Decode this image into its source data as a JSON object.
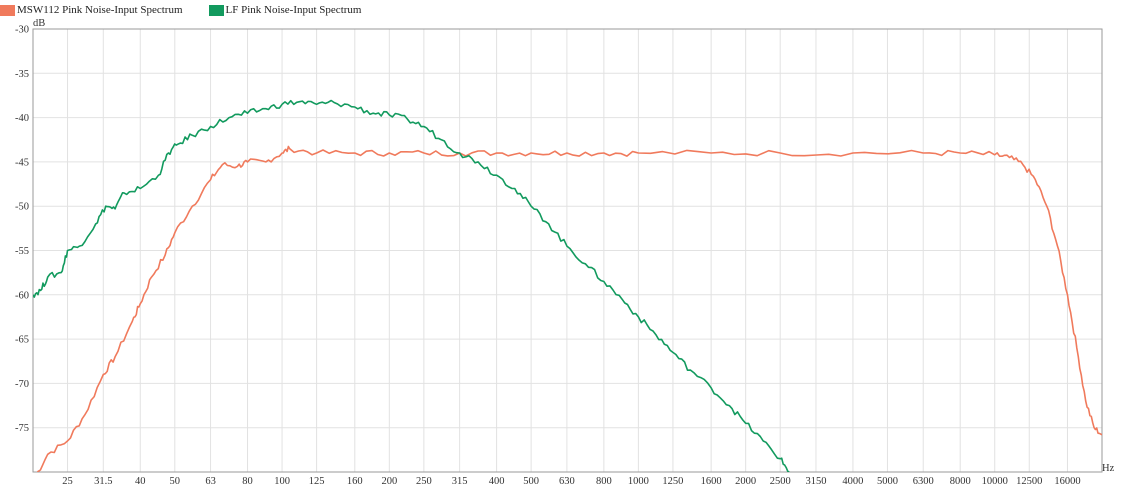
{
  "chart_data": {
    "type": "line",
    "xlabel": "Hz",
    "ylabel": "dB",
    "x_scale": "log",
    "ylim": [
      -80,
      -30
    ],
    "xlim": [
      20,
      20000
    ],
    "grid": true,
    "legend_position": "top-left",
    "x_ticks": [
      "25",
      "31.5",
      "40",
      "50",
      "63",
      "80",
      "100",
      "125",
      "160",
      "200",
      "250",
      "315",
      "400",
      "500",
      "630",
      "800",
      "1000",
      "1250",
      "1600",
      "2000",
      "2500",
      "3150",
      "4000",
      "5000",
      "6300",
      "8000",
      "10000",
      "12500",
      "16000"
    ],
    "y_ticks": [
      "-30",
      "-35",
      "-40",
      "-45",
      "-50",
      "-55",
      "-60",
      "-65",
      "-70",
      "-75"
    ],
    "series": [
      {
        "name": "MSW112 Pink Noise-Input Spectrum",
        "color": "#f07a5c",
        "points": [
          [
            20,
            -81
          ],
          [
            22,
            -78
          ],
          [
            25,
            -76.5
          ],
          [
            28,
            -73.5
          ],
          [
            31.5,
            -69
          ],
          [
            34,
            -67
          ],
          [
            38,
            -63
          ],
          [
            40,
            -61
          ],
          [
            43,
            -58
          ],
          [
            47,
            -55.5
          ],
          [
            50,
            -53
          ],
          [
            56,
            -50
          ],
          [
            63,
            -47
          ],
          [
            68,
            -45.3
          ],
          [
            75,
            -45.5
          ],
          [
            80,
            -45
          ],
          [
            90,
            -45
          ],
          [
            100,
            -44
          ],
          [
            105,
            -43.5
          ],
          [
            125,
            -44
          ],
          [
            160,
            -44
          ],
          [
            200,
            -44
          ],
          [
            250,
            -44
          ],
          [
            315,
            -44
          ],
          [
            400,
            -44
          ],
          [
            500,
            -44
          ],
          [
            630,
            -44
          ],
          [
            800,
            -44
          ],
          [
            1000,
            -44
          ],
          [
            1600,
            -44
          ],
          [
            2500,
            -44
          ],
          [
            4000,
            -44
          ],
          [
            6300,
            -44
          ],
          [
            8000,
            -44
          ],
          [
            10000,
            -44.2
          ],
          [
            11000,
            -44.5
          ],
          [
            12000,
            -45.3
          ],
          [
            13000,
            -47
          ],
          [
            14000,
            -50
          ],
          [
            15000,
            -54.5
          ],
          [
            16000,
            -60
          ],
          [
            17000,
            -66
          ],
          [
            18000,
            -72
          ],
          [
            19000,
            -75
          ],
          [
            20000,
            -75.8
          ]
        ]
      },
      {
        "name": "LF Pink Noise-Input Spectrum",
        "color": "#129a5e",
        "points": [
          [
            20,
            -60
          ],
          [
            21,
            -59.5
          ],
          [
            22,
            -58
          ],
          [
            24,
            -57.5
          ],
          [
            25,
            -55
          ],
          [
            27,
            -54.5
          ],
          [
            30,
            -52
          ],
          [
            32,
            -50
          ],
          [
            34,
            -50.3
          ],
          [
            36,
            -48.5
          ],
          [
            40,
            -48
          ],
          [
            45,
            -46.5
          ],
          [
            48,
            -44
          ],
          [
            51,
            -43
          ],
          [
            56,
            -42
          ],
          [
            63,
            -41
          ],
          [
            71,
            -40
          ],
          [
            80,
            -39.5
          ],
          [
            90,
            -39
          ],
          [
            100,
            -38.5
          ],
          [
            112,
            -38.2
          ],
          [
            125,
            -38.5
          ],
          [
            140,
            -38.3
          ],
          [
            160,
            -38.8
          ],
          [
            180,
            -39.5
          ],
          [
            200,
            -39.7
          ],
          [
            225,
            -40.2
          ],
          [
            250,
            -41
          ],
          [
            280,
            -42.5
          ],
          [
            315,
            -44
          ],
          [
            355,
            -45
          ],
          [
            400,
            -46.5
          ],
          [
            450,
            -48
          ],
          [
            500,
            -50
          ],
          [
            560,
            -52
          ],
          [
            630,
            -54.5
          ],
          [
            710,
            -56.5
          ],
          [
            800,
            -58.5
          ],
          [
            900,
            -60.5
          ],
          [
            1000,
            -62.5
          ],
          [
            1120,
            -64.5
          ],
          [
            1250,
            -66.5
          ],
          [
            1400,
            -68.5
          ],
          [
            1600,
            -70.5
          ],
          [
            1800,
            -72.5
          ],
          [
            2000,
            -74.5
          ],
          [
            2240,
            -76.5
          ],
          [
            2500,
            -78.5
          ],
          [
            2650,
            -80
          ]
        ]
      }
    ]
  }
}
